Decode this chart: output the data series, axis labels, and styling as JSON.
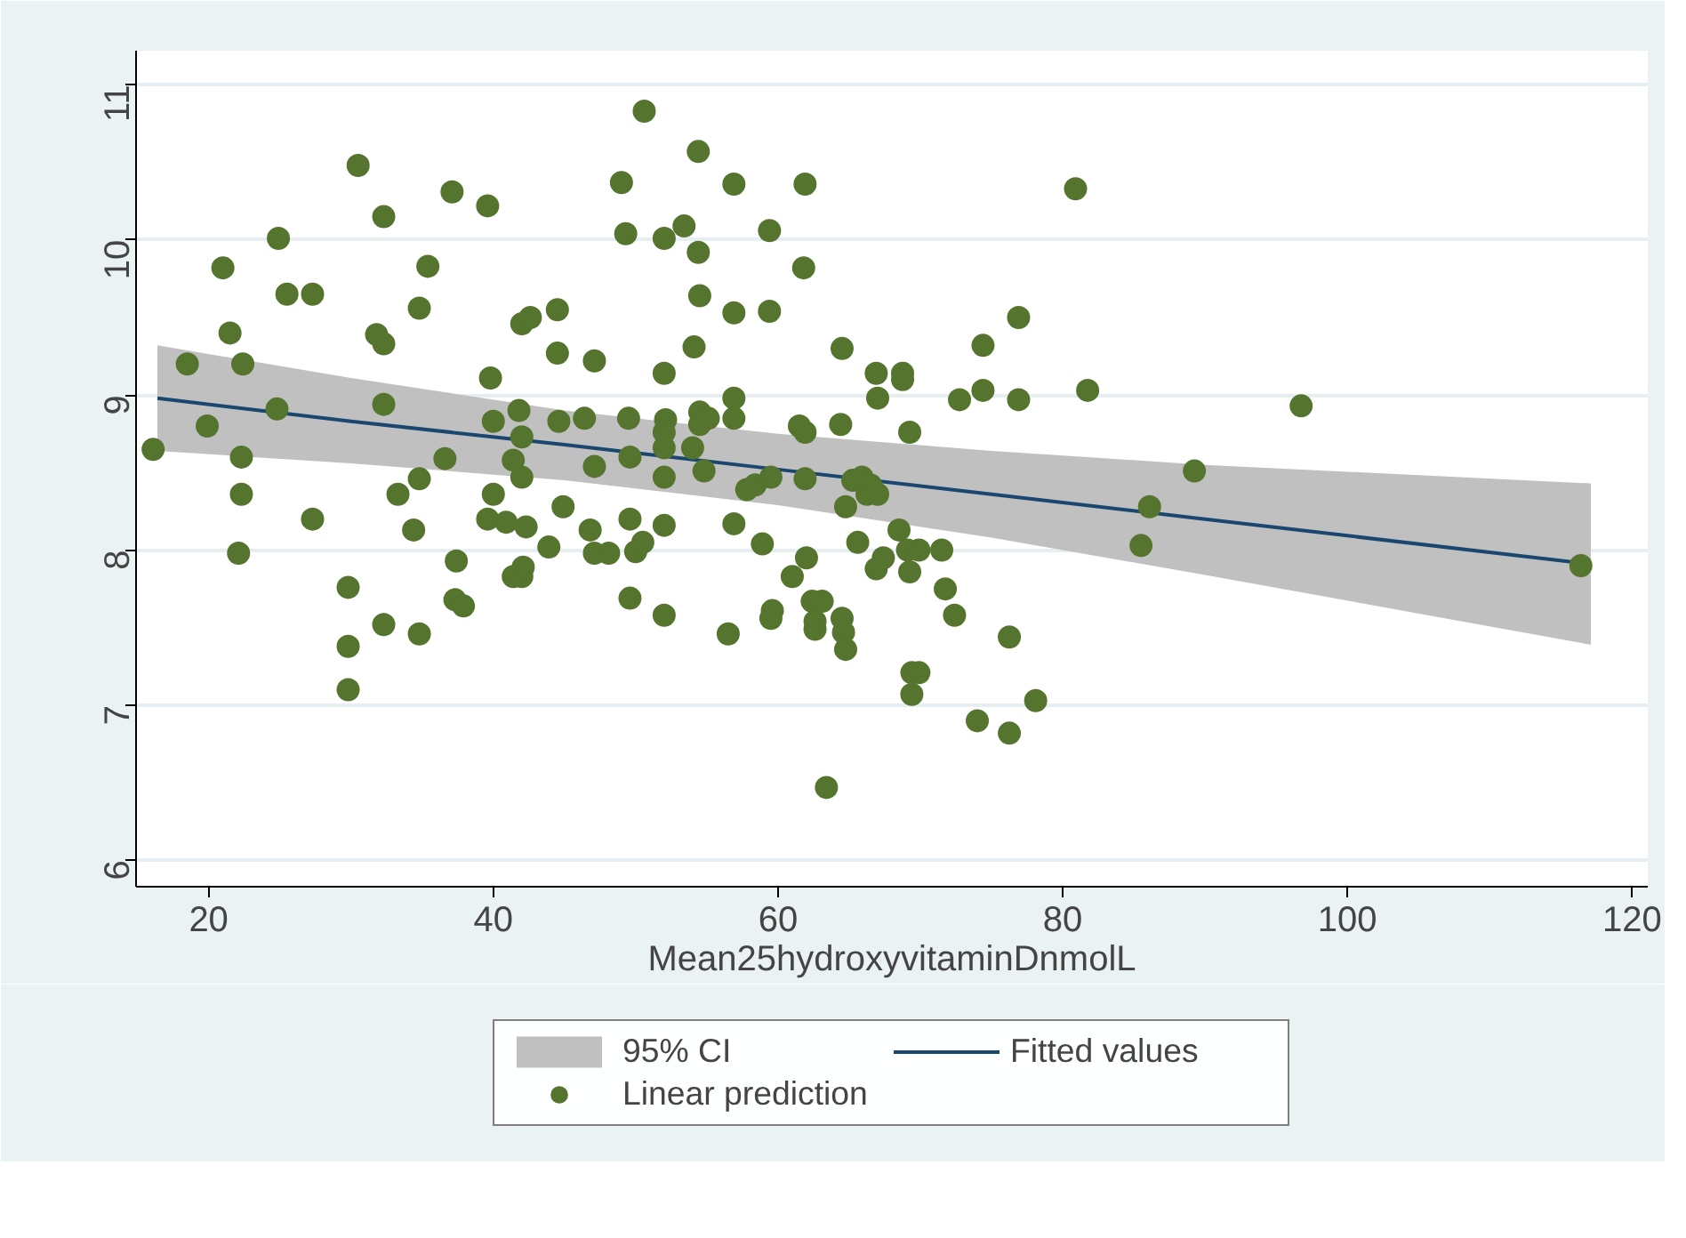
{
  "chart_data": {
    "type": "scatter",
    "xlabel": "Mean25hydroxyvitaminDnmolL",
    "xlim": [
      14.9,
      121.1
    ],
    "ylim": [
      5.83,
      11.22
    ],
    "xticks": [
      20,
      40,
      60,
      80,
      100,
      120
    ],
    "yticks": [
      6,
      7,
      8,
      9,
      10,
      11
    ],
    "grid": "y",
    "legend": "bottom",
    "series": [
      {
        "name": "95% CI",
        "type": "area",
        "color": "#c0c0c0"
      },
      {
        "name": "Fitted values",
        "type": "line",
        "color": "#1a476f",
        "x": [
          16.4,
          30,
          45,
          60,
          75,
          90,
          117.1
        ],
        "values": [
          8.98,
          8.83,
          8.68,
          8.52,
          8.36,
          8.2,
          7.91
        ],
        "lower": [
          8.64,
          8.56,
          8.45,
          8.29,
          8.08,
          7.84,
          7.39
        ],
        "upper": [
          9.32,
          9.11,
          8.9,
          8.75,
          8.64,
          8.55,
          8.43
        ]
      },
      {
        "name": "Linear prediction",
        "marker": "circle",
        "color": "#55752f",
        "x": [
          16.1,
          18.5,
          19.9,
          21.0,
          21.5,
          22.4,
          22.3,
          22.3,
          22.1,
          24.9,
          24.8,
          25.5,
          27.3,
          27.3,
          29.8,
          29.8,
          29.8,
          30.5,
          31.8,
          32.3,
          32.3,
          32.3,
          32.3,
          33.3,
          34.4,
          34.8,
          34.8,
          34.8,
          35.4,
          36.6,
          37.1,
          37.3,
          37.4,
          37.9,
          39.6,
          39.8,
          40.0,
          40.0,
          39.6,
          40.9,
          41.4,
          41.4,
          41.8,
          42.0,
          42.0,
          42.0,
          42.3,
          42.0,
          42.1,
          42.6,
          43.9,
          44.5,
          44.6,
          44.5,
          44.9,
          46.4,
          47.1,
          47.1,
          46.8,
          47.1,
          48.1,
          49.0,
          49.3,
          49.5,
          49.6,
          49.6,
          49.6,
          50.0,
          50.5,
          50.6,
          52.0,
          52.0,
          52.1,
          52.0,
          52.0,
          52.0,
          52.0,
          52.0,
          53.4,
          54.1,
          54.0,
          54.4,
          54.4,
          54.5,
          54.5,
          54.5,
          54.8,
          55.1,
          56.9,
          56.9,
          56.9,
          56.9,
          56.9,
          56.5,
          57.8,
          58.4,
          58.9,
          59.4,
          59.4,
          59.5,
          59.6,
          59.5,
          61.0,
          61.5,
          61.9,
          61.8,
          61.9,
          61.9,
          62.0,
          62.4,
          62.6,
          62.6,
          63.1,
          63.4,
          64.5,
          64.4,
          64.75,
          64.5,
          64.6,
          64.75,
          65.25,
          65.6,
          65.9,
          66.25,
          66.5,
          66.9,
          67.0,
          67.0,
          66.9,
          67.4,
          68.75,
          68.75,
          69.25,
          68.5,
          69.25,
          69.1,
          69.4,
          69.9,
          69.4,
          69.9,
          71.5,
          71.75,
          72.4,
          72.75,
          74.0,
          74.4,
          74.4,
          76.25,
          76.25,
          76.9,
          76.9,
          78.1,
          80.9,
          81.75,
          85.5,
          86.1,
          89.25,
          96.75,
          116.4
        ],
        "values": [
          8.65,
          9.2,
          8.8,
          9.82,
          9.4,
          9.2,
          8.6,
          8.36,
          7.98,
          10.01,
          8.91,
          9.65,
          9.65,
          8.2,
          7.76,
          7.38,
          7.1,
          10.48,
          9.39,
          9.33,
          10.15,
          8.94,
          7.52,
          8.36,
          8.13,
          8.46,
          7.46,
          9.56,
          9.83,
          8.59,
          10.31,
          7.68,
          7.93,
          7.64,
          10.22,
          9.11,
          8.83,
          8.36,
          8.2,
          8.18,
          7.83,
          8.58,
          8.9,
          9.46,
          8.73,
          8.47,
          8.15,
          7.83,
          7.89,
          9.5,
          8.02,
          9.55,
          8.83,
          9.27,
          8.28,
          8.85,
          9.22,
          8.54,
          8.13,
          7.98,
          7.98,
          10.37,
          10.04,
          8.85,
          8.6,
          8.2,
          7.69,
          7.99,
          8.05,
          10.83,
          10.01,
          9.14,
          8.84,
          8.76,
          8.66,
          8.47,
          8.16,
          7.58,
          10.09,
          9.31,
          8.66,
          10.57,
          9.92,
          9.64,
          8.89,
          8.81,
          8.51,
          8.85,
          10.36,
          9.53,
          8.98,
          8.85,
          8.17,
          7.46,
          8.39,
          8.42,
          8.04,
          10.06,
          9.54,
          8.47,
          7.61,
          7.56,
          7.83,
          8.8,
          10.36,
          9.82,
          8.76,
          8.46,
          7.95,
          7.67,
          7.49,
          7.54,
          7.67,
          6.47,
          9.3,
          8.81,
          8.28,
          7.56,
          7.47,
          7.36,
          8.45,
          8.05,
          8.47,
          8.36,
          8.42,
          9.14,
          8.98,
          8.36,
          7.88,
          7.95,
          9.14,
          9.1,
          8.76,
          8.13,
          7.86,
          8.0,
          7.21,
          7.21,
          7.07,
          8.0,
          8.0,
          7.75,
          7.58,
          8.97,
          6.9,
          9.03,
          9.32,
          6.82,
          7.44,
          9.5,
          8.97,
          7.03,
          10.33,
          9.03,
          8.03,
          8.28,
          8.51,
          8.93,
          7.9
        ]
      }
    ]
  }
}
